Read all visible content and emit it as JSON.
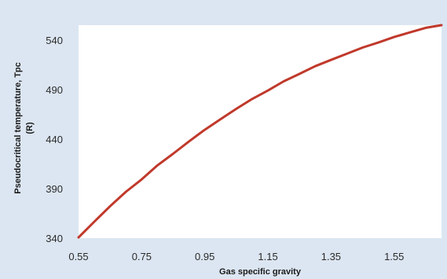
{
  "chart_data": {
    "type": "line",
    "title": "",
    "xlabel": "Gas specific gravity",
    "ylabel_line1": "Pseudocritical temperature, Tpc",
    "ylabel_line2": "(R)",
    "xlim": [
      0.55,
      1.7
    ],
    "ylim": [
      340,
      555
    ],
    "xticks": [
      0.55,
      0.75,
      0.95,
      1.15,
      1.35,
      1.55
    ],
    "xtick_labels": [
      "0.55",
      "0.75",
      "0.95",
      "1.15",
      "1.35",
      "1.55"
    ],
    "yticks": [
      340,
      390,
      440,
      490,
      540
    ],
    "ytick_labels": [
      "340",
      "390",
      "440",
      "490",
      "540"
    ],
    "grid": false,
    "series": [
      {
        "color": "#c0392b",
        "x": [
          0.55,
          0.6,
          0.65,
          0.7,
          0.75,
          0.8,
          0.85,
          0.9,
          0.95,
          1.0,
          1.05,
          1.1,
          1.15,
          1.2,
          1.25,
          1.3,
          1.35,
          1.4,
          1.45,
          1.5,
          1.55,
          1.6,
          1.65,
          1.7
        ],
        "y": [
          340.7,
          356.7,
          372.3,
          386.8,
          399.3,
          413.5,
          425.3,
          437.7,
          449.4,
          460.1,
          470.6,
          480.5,
          489.0,
          498.3,
          505.8,
          513.6,
          519.9,
          526.1,
          532.4,
          537.5,
          543.0,
          547.7,
          552.3,
          555.0
        ]
      }
    ],
    "colors": {
      "frame_bg": "#dce6f2",
      "plot_bg": "#ffffff",
      "line": "#c0392b"
    }
  }
}
